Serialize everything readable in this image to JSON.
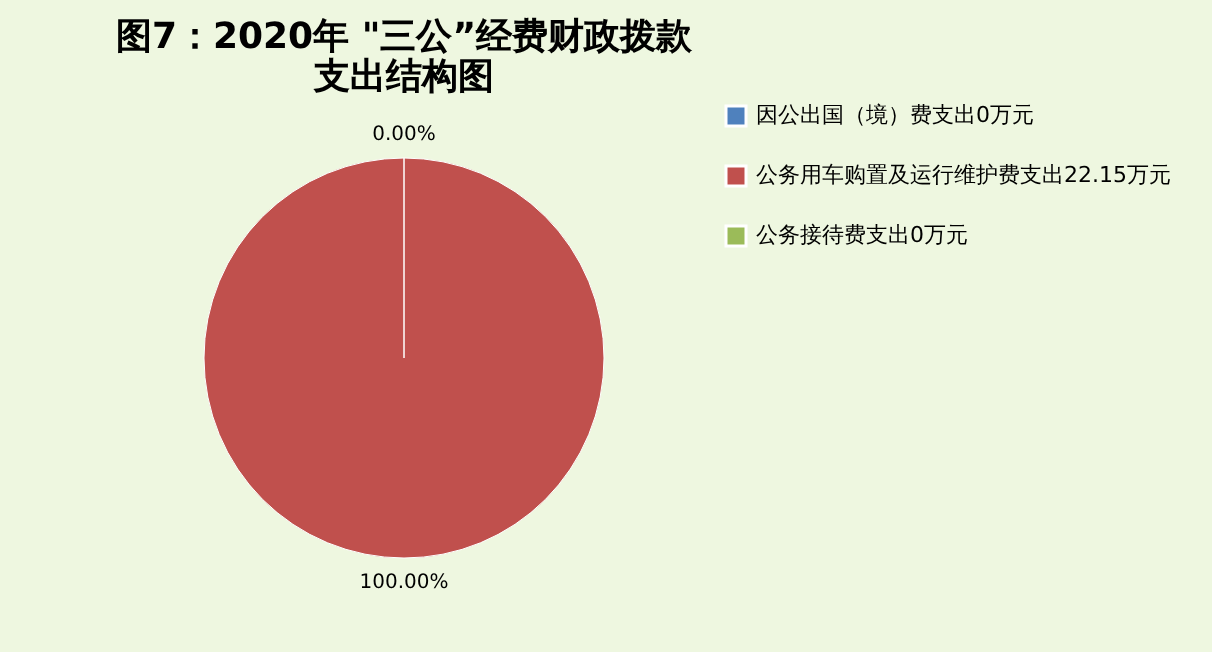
{
  "chart_data": {
    "type": "pie",
    "title": [
      "图7：2020年 \"三公”经费财政拨款",
      "支出结构图"
    ],
    "categories": [
      "因公出国（境）费支出0万元",
      "公务用车购置及运行维护费支出22.15万元",
      "公务接待费支出0万元"
    ],
    "values": [
      0,
      100,
      0
    ],
    "colors": [
      "#4f81bd",
      "#c0504d",
      "#9bbb59"
    ],
    "value_labels": [
      "0.00%",
      "100.00%",
      null
    ],
    "legend": "right"
  }
}
